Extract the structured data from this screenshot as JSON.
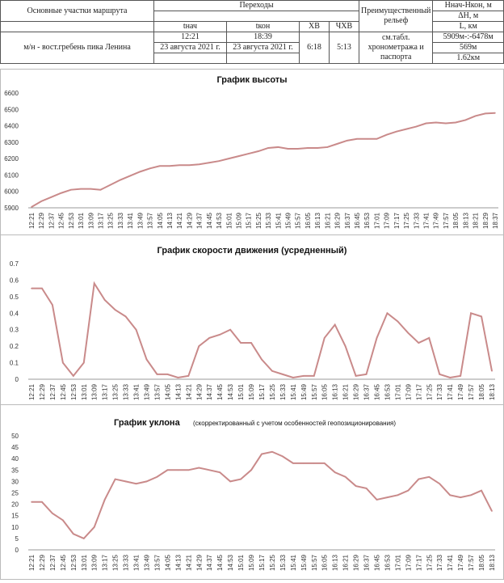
{
  "table": {
    "col_route": "Основные участки маршрута",
    "col_transitions": "Переходы",
    "col_relief": "Преимущественный рельеф",
    "col_h": "Ннач-Нкон, м",
    "col_dh": "ΔН, м",
    "col_l": "L, км",
    "t_start": "tнач",
    "t_end": "tкон",
    "xv": "ХВ",
    "chxv": "ЧХВ",
    "route": "м/н - вост.гребень пика Ленина",
    "start_time": "12:21",
    "start_date": "23 августа 2021 г.",
    "end_time": "18:39",
    "end_date": "23 августа 2021 г.",
    "xv_val": "6:18",
    "chxv_val": "5:13",
    "relief": "см.табл. хронометража и паспорта",
    "h_val": "5909м-:-6478м",
    "dh_val": "569м",
    "l_val": "1.62км"
  },
  "chart_data": [
    {
      "type": "line",
      "title": "График высоты",
      "title_small": "",
      "ylim": [
        5900,
        6600
      ],
      "yticks": [
        5900,
        6000,
        6100,
        6200,
        6300,
        6400,
        6500,
        6600
      ],
      "color": "#c98a8a",
      "categories": [
        "12:21",
        "12:29",
        "12:37",
        "12:45",
        "12:53",
        "13:01",
        "13:09",
        "13:17",
        "13:25",
        "13:33",
        "13:41",
        "13:49",
        "13:57",
        "14:05",
        "14:13",
        "14:21",
        "14:29",
        "14:37",
        "14:45",
        "14:53",
        "15:01",
        "15:09",
        "15:17",
        "15:25",
        "15:33",
        "15:41",
        "15:49",
        "15:57",
        "16:05",
        "16:13",
        "16:21",
        "16:29",
        "16:37",
        "16:45",
        "16:53",
        "17:01",
        "17:09",
        "17:17",
        "17:25",
        "17:33",
        "17:41",
        "17:49",
        "17:57",
        "18:05",
        "18:13",
        "18:21",
        "18:29",
        "18:37"
      ],
      "values": [
        5905,
        5940,
        5965,
        5990,
        6010,
        6015,
        6015,
        6010,
        6040,
        6070,
        6095,
        6120,
        6140,
        6155,
        6155,
        6160,
        6160,
        6165,
        6175,
        6185,
        6200,
        6215,
        6230,
        6245,
        6265,
        6270,
        6260,
        6260,
        6265,
        6265,
        6270,
        6290,
        6310,
        6320,
        6320,
        6320,
        6345,
        6365,
        6380,
        6395,
        6415,
        6420,
        6415,
        6420,
        6435,
        6460,
        6475,
        6478
      ]
    },
    {
      "type": "line",
      "title": "График скорости движения (усредненный)",
      "title_small": "",
      "ylim": [
        0,
        0.7
      ],
      "yticks": [
        0,
        0.1,
        0.2,
        0.3,
        0.4,
        0.5,
        0.6,
        0.7
      ],
      "color": "#c98a8a",
      "categories": [
        "12:21",
        "12:29",
        "12:37",
        "12:45",
        "12:53",
        "13:01",
        "13:09",
        "13:17",
        "13:25",
        "13:33",
        "13:41",
        "13:49",
        "13:57",
        "14:05",
        "14:13",
        "14:21",
        "14:29",
        "14:37",
        "14:45",
        "14:53",
        "15:01",
        "15:09",
        "15:17",
        "15:25",
        "15:33",
        "15:41",
        "15:49",
        "15:57",
        "16:05",
        "16:13",
        "16:21",
        "16:29",
        "16:37",
        "16:45",
        "16:53",
        "17:01",
        "17:09",
        "17:17",
        "17:25",
        "17:33",
        "17:41",
        "17:49",
        "17:57",
        "18:05",
        "18:13"
      ],
      "values": [
        0.55,
        0.55,
        0.45,
        0.1,
        0.02,
        0.1,
        0.58,
        0.48,
        0.42,
        0.38,
        0.3,
        0.12,
        0.03,
        0.03,
        0.01,
        0.02,
        0.2,
        0.25,
        0.27,
        0.3,
        0.22,
        0.22,
        0.12,
        0.05,
        0.03,
        0.01,
        0.02,
        0.02,
        0.25,
        0.33,
        0.2,
        0.02,
        0.03,
        0.25,
        0.4,
        0.35,
        0.28,
        0.22,
        0.25,
        0.03,
        0.01,
        0.02,
        0.4,
        0.38,
        0.05
      ]
    },
    {
      "type": "line",
      "title": "График уклона",
      "title_small": "(скорректированный  с учетом  особенностей  геопозиционирования)",
      "ylim": [
        0,
        50
      ],
      "yticks": [
        0,
        5,
        10,
        15,
        20,
        25,
        30,
        35,
        40,
        45,
        50
      ],
      "color": "#c98a8a",
      "categories": [
        "12:21",
        "12:29",
        "12:37",
        "12:45",
        "12:53",
        "13:01",
        "13:09",
        "13:17",
        "13:25",
        "13:33",
        "13:41",
        "13:49",
        "13:57",
        "14:05",
        "14:13",
        "14:21",
        "14:29",
        "14:37",
        "14:45",
        "14:53",
        "15:01",
        "15:09",
        "15:17",
        "15:25",
        "15:33",
        "15:41",
        "15:49",
        "15:57",
        "16:05",
        "16:13",
        "16:21",
        "16:29",
        "16:37",
        "16:45",
        "16:53",
        "17:01",
        "17:09",
        "17:17",
        "17:25",
        "17:33",
        "17:41",
        "17:49",
        "17:57",
        "18:05",
        "18:13"
      ],
      "values": [
        21,
        21,
        16,
        13,
        7,
        5,
        10,
        22,
        31,
        30,
        29,
        30,
        32,
        35,
        35,
        35,
        36,
        35,
        34,
        30,
        31,
        35,
        42,
        43,
        41,
        38,
        38,
        38,
        38,
        34,
        32,
        28,
        27,
        22,
        23,
        24,
        26,
        31,
        32,
        29,
        24,
        23,
        24,
        26,
        17
      ]
    }
  ]
}
